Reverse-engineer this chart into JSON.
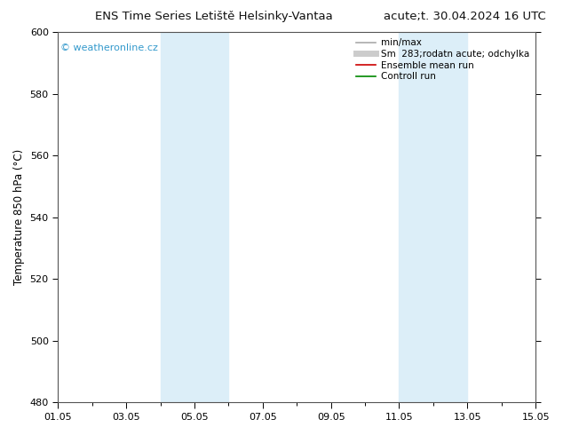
{
  "title_left": "ENS Time Series Letiště Helsinky-Vantaa",
  "title_right": "acute;t. 30.04.2024 16 UTC",
  "ylabel": "Temperature 850 hPa (°C)",
  "ylim": [
    480,
    600
  ],
  "yticks": [
    480,
    500,
    520,
    540,
    560,
    580,
    600
  ],
  "xlim_start": 0,
  "xlim_end": 14,
  "xtick_labels": [
    "01.05",
    "03.05",
    "05.05",
    "07.05",
    "09.05",
    "11.05",
    "13.05",
    "15.05"
  ],
  "xtick_positions": [
    0,
    2,
    4,
    6,
    8,
    10,
    12,
    14
  ],
  "shaded_bands": [
    {
      "xmin": 3.0,
      "xmax": 5.0,
      "color": "#dceef8"
    },
    {
      "xmin": 10.0,
      "xmax": 12.0,
      "color": "#dceef8"
    }
  ],
  "watermark": "© weatheronline.cz",
  "watermark_color": "#3399cc",
  "legend_entries": [
    {
      "label": "min/max",
      "color": "#aaaaaa",
      "lw": 1.2
    },
    {
      "label": "Sm  283;rodatn acute; odchylka",
      "color": "#cccccc",
      "lw": 5
    },
    {
      "label": "Ensemble mean run",
      "color": "#cc0000",
      "lw": 1.2
    },
    {
      "label": "Controll run",
      "color": "#008800",
      "lw": 1.2
    }
  ],
  "bg_color": "#ffffff",
  "plot_bg_color": "#ffffff",
  "grid_color": "#dddddd",
  "title_fontsize": 9.5,
  "axis_label_fontsize": 8.5,
  "tick_fontsize": 8,
  "legend_fontsize": 7.5
}
